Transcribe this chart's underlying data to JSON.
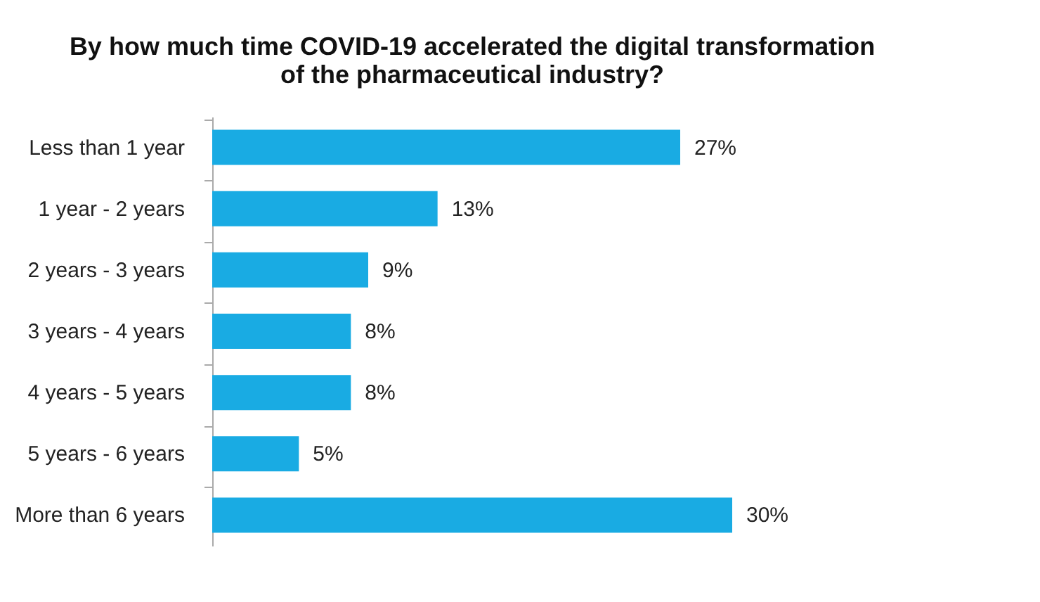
{
  "chart_data": {
    "type": "bar",
    "orientation": "horizontal",
    "title": "By how much time COVID-19 accelerated the digital transformation\nof the pharmaceutical industry?",
    "categories": [
      "Less than 1 year",
      "1 year - 2 years",
      "2 years - 3 years",
      "3 years - 4 years",
      "4 years - 5 years",
      "5 years - 6 years",
      "More than 6 years"
    ],
    "values": [
      27,
      13,
      9,
      8,
      8,
      5,
      30
    ],
    "value_labels": [
      "27%",
      "13%",
      "9%",
      "8%",
      "8%",
      "5%",
      "30%"
    ],
    "color": "#19abe3",
    "tick_labels": "y"
  }
}
